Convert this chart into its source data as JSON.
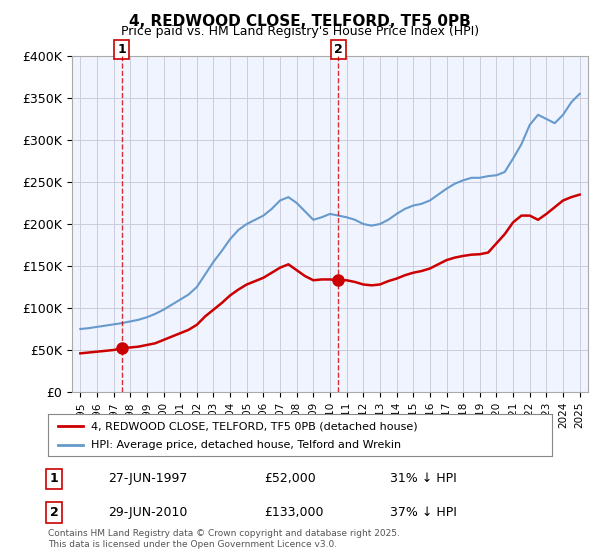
{
  "title": "4, REDWOOD CLOSE, TELFORD, TF5 0PB",
  "subtitle": "Price paid vs. HM Land Registry's House Price Index (HPI)",
  "ylabel": "",
  "ylim": [
    0,
    400000
  ],
  "yticks": [
    0,
    50000,
    100000,
    150000,
    200000,
    250000,
    300000,
    350000,
    400000
  ],
  "ytick_labels": [
    "£0",
    "£50K",
    "£100K",
    "£150K",
    "£200K",
    "£250K",
    "£300K",
    "£350K",
    "£400K"
  ],
  "xlim_start": 1994.5,
  "xlim_end": 2025.5,
  "background_color": "#f0f4ff",
  "plot_bg_color": "#f0f4ff",
  "grid_color": "#ccccdd",
  "legend_line1": "4, REDWOOD CLOSE, TELFORD, TF5 0PB (detached house)",
  "legend_line2": "HPI: Average price, detached house, Telford and Wrekin",
  "transaction1_x": 1997.49,
  "transaction1_y": 52000,
  "transaction1_label": "1",
  "transaction1_date": "27-JUN-1997",
  "transaction1_price": "£52,000",
  "transaction1_hpi": "31% ↓ HPI",
  "transaction2_x": 2010.49,
  "transaction2_y": 133000,
  "transaction2_label": "2",
  "transaction2_date": "29-JUN-2010",
  "transaction2_price": "£133,000",
  "transaction2_hpi": "37% ↓ HPI",
  "copyright": "Contains HM Land Registry data © Crown copyright and database right 2025.\nThis data is licensed under the Open Government Licence v3.0.",
  "red_line_color": "#cc0000",
  "blue_line_color": "#6699cc",
  "marker_color": "#cc0000",
  "hpi_x": [
    1995,
    1995.5,
    1996,
    1996.5,
    1997,
    1997.5,
    1998,
    1998.5,
    1999,
    1999.5,
    2000,
    2000.5,
    2001,
    2001.5,
    2002,
    2002.5,
    2003,
    2003.5,
    2004,
    2004.5,
    2005,
    2005.5,
    2006,
    2006.5,
    2007,
    2007.5,
    2008,
    2008.5,
    2009,
    2009.5,
    2010,
    2010.5,
    2011,
    2011.5,
    2012,
    2012.5,
    2013,
    2013.5,
    2014,
    2014.5,
    2015,
    2015.5,
    2016,
    2016.5,
    2017,
    2017.5,
    2018,
    2018.5,
    2019,
    2019.5,
    2020,
    2020.5,
    2021,
    2021.5,
    2022,
    2022.5,
    2023,
    2023.5,
    2024,
    2024.5,
    2025
  ],
  "hpi_y": [
    75000,
    76000,
    77500,
    79000,
    80500,
    82000,
    84000,
    86000,
    89000,
    93000,
    98000,
    104000,
    110000,
    116000,
    125000,
    140000,
    155000,
    168000,
    182000,
    193000,
    200000,
    205000,
    210000,
    218000,
    228000,
    232000,
    225000,
    215000,
    205000,
    208000,
    212000,
    210000,
    208000,
    205000,
    200000,
    198000,
    200000,
    205000,
    212000,
    218000,
    222000,
    224000,
    228000,
    235000,
    242000,
    248000,
    252000,
    255000,
    255000,
    257000,
    258000,
    262000,
    278000,
    295000,
    318000,
    330000,
    325000,
    320000,
    330000,
    345000,
    355000
  ],
  "paid_x": [
    1995,
    1995.5,
    1996,
    1996.5,
    1997,
    1997.49,
    1997.5,
    1998,
    1998.5,
    1999,
    1999.5,
    2000,
    2000.5,
    2001,
    2001.5,
    2002,
    2002.5,
    2003,
    2003.5,
    2004,
    2004.5,
    2005,
    2005.5,
    2006,
    2006.5,
    2007,
    2007.5,
    2008,
    2008.5,
    2009,
    2009.5,
    2010,
    2010.49,
    2010.5,
    2011,
    2011.5,
    2012,
    2012.5,
    2013,
    2013.5,
    2014,
    2014.5,
    2015,
    2015.5,
    2016,
    2016.5,
    2017,
    2017.5,
    2018,
    2018.5,
    2019,
    2019.5,
    2020,
    2020.5,
    2021,
    2021.5,
    2022,
    2022.5,
    2023,
    2023.5,
    2024,
    2024.5,
    2025
  ],
  "paid_y": [
    46000,
    47000,
    48000,
    49000,
    50000,
    52000,
    52200,
    53000,
    54000,
    56000,
    58000,
    62000,
    66000,
    70000,
    74000,
    80000,
    90000,
    98000,
    106000,
    115000,
    122000,
    128000,
    132000,
    136000,
    142000,
    148000,
    152000,
    145000,
    138000,
    133000,
    134000,
    134000,
    133000,
    133500,
    133000,
    131000,
    128000,
    127000,
    128000,
    132000,
    135000,
    139000,
    142000,
    144000,
    147000,
    152000,
    157000,
    160000,
    162000,
    163500,
    164000,
    166000,
    177000,
    188000,
    202000,
    210000,
    210000,
    205000,
    212000,
    220000,
    228000,
    232000,
    235000
  ]
}
